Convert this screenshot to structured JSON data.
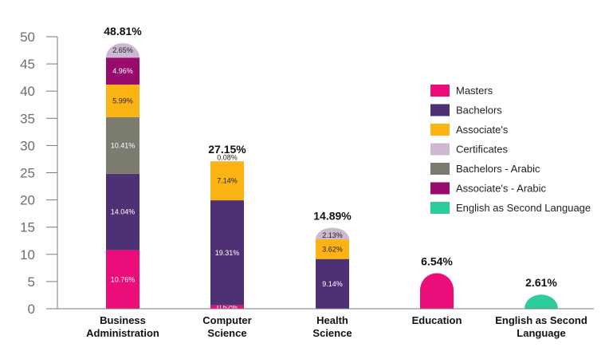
{
  "chart_data": {
    "type": "bar",
    "stacked": true,
    "title": "",
    "xlabel": "",
    "ylabel": "",
    "ylim": [
      0,
      50
    ],
    "yticks": [
      0,
      5,
      10,
      15,
      20,
      25,
      30,
      35,
      40,
      45,
      50
    ],
    "grid": false,
    "legend_position": "right",
    "categories": [
      [
        "Business",
        "Administration"
      ],
      [
        "Computer",
        "Science"
      ],
      [
        "Health",
        "Science"
      ],
      [
        "Education"
      ],
      [
        "English as Second",
        "Language"
      ]
    ],
    "totals": [
      "48.81%",
      "27.15%",
      "14.89%",
      "6.54%",
      "2.61%"
    ],
    "series": [
      {
        "name": "Masters",
        "color": "#ea0d7a",
        "values": [
          10.76,
          0.62,
          0,
          6.54,
          0
        ],
        "labels": [
          "10.76%",
          "0.62%",
          "",
          "",
          ""
        ]
      },
      {
        "name": "Bachelors",
        "color": "#4e3174",
        "values": [
          14.04,
          19.31,
          9.14,
          0,
          0
        ],
        "labels": [
          "14.04%",
          "19.31%",
          "9.14%",
          "",
          ""
        ]
      },
      {
        "name": "Associate's",
        "color": "#fbb414",
        "values": [
          5.99,
          7.14,
          3.62,
          0,
          0
        ],
        "labels": [
          "5.99%",
          "7.14%",
          "3.62%",
          "",
          ""
        ]
      },
      {
        "name": "Certificates",
        "color": "#ccb9d0",
        "values": [
          2.65,
          0.08,
          2.13,
          0,
          0
        ],
        "labels": [
          "2.65%",
          "0.08%",
          "2.13%",
          "",
          ""
        ]
      },
      {
        "name": "Bachelors - Arabic",
        "color": "#7b7b6f",
        "values": [
          10.41,
          0,
          0,
          0,
          0
        ],
        "labels": [
          "10.41%",
          "",
          "",
          "",
          ""
        ]
      },
      {
        "name": "Associate's - Arabic",
        "color": "#980b6d",
        "values": [
          4.96,
          0,
          0,
          0,
          0
        ],
        "labels": [
          "4.96%",
          "",
          "",
          "",
          ""
        ]
      },
      {
        "name": "English as Second Language",
        "color": "#2ecb9c",
        "values": [
          0,
          0,
          0,
          0,
          2.61
        ],
        "labels": [
          "",
          "",
          "",
          "",
          ""
        ]
      }
    ],
    "stack_order": [
      "Masters",
      "Bachelors",
      "Bachelors - Arabic",
      "Associate's",
      "Associate's - Arabic",
      "Certificates",
      "English as Second Language"
    ]
  }
}
